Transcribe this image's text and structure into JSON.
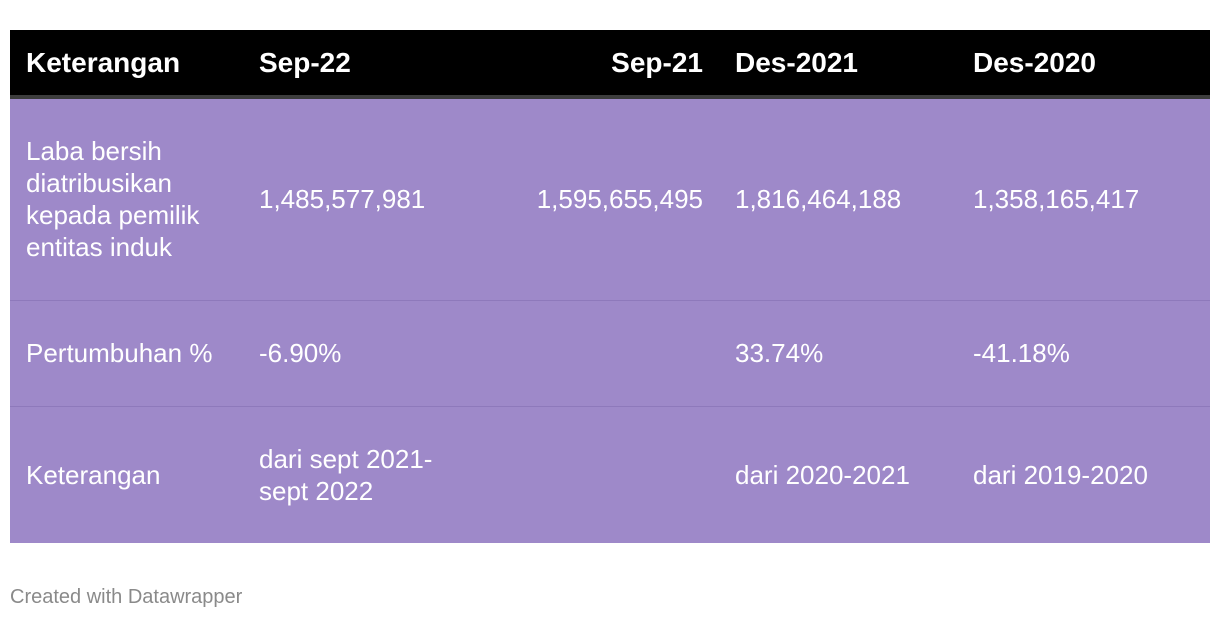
{
  "chart_data": {
    "type": "table",
    "columns": [
      "Keterangan",
      "Sep-22",
      "Sep-21",
      "Des-2021",
      "Des-2020"
    ],
    "rows": [
      [
        "Laba bersih diatribusikan kepada pemilik entitas induk",
        "1,485,577,981",
        "1,595,655,495",
        "1,816,464,188",
        "1,358,165,417"
      ],
      [
        "Pertumbuhan %",
        "-6.90%",
        "",
        "33.74%",
        "-41.18%"
      ],
      [
        "Keterangan",
        "dari sept 2021-sept 2022",
        "",
        "dari 2020-2021",
        "dari 2019-2020"
      ]
    ]
  },
  "footer": {
    "credit": "Created with Datawrapper"
  },
  "colors": {
    "header_bg": "#000000",
    "row_bg": "#9e89c9",
    "text": "#ffffff",
    "footer_text": "#8a8a8a"
  }
}
